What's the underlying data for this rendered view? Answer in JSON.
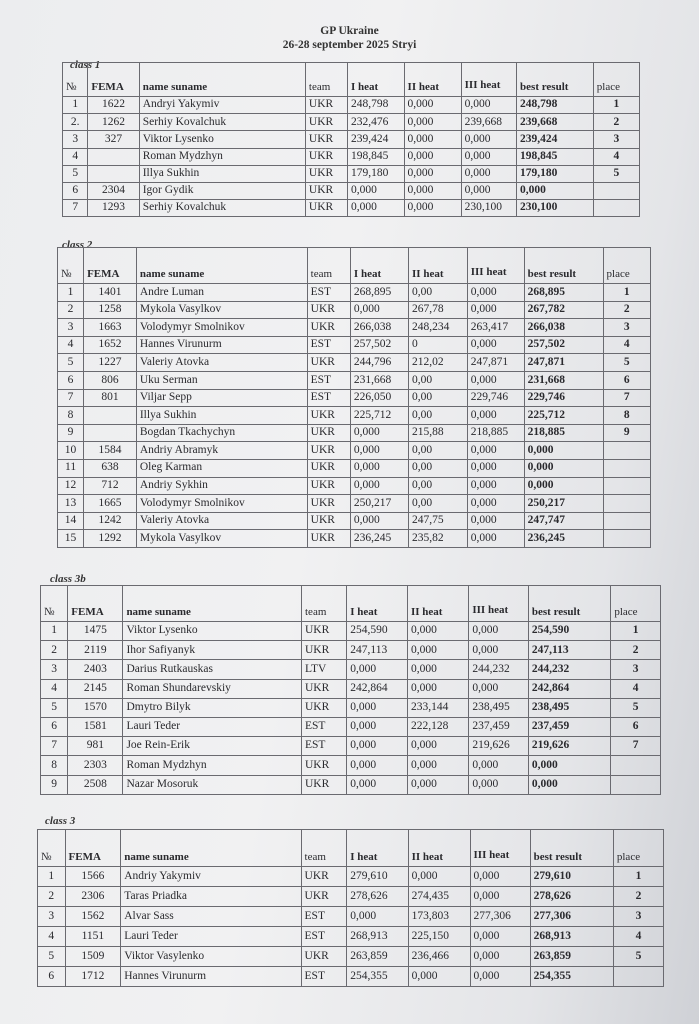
{
  "header": {
    "title": "GP Ukraine",
    "subtitle": "26-28 september 2025  Stryi"
  },
  "columns": [
    "№",
    "FEMA",
    "name suname",
    "team",
    "I heat",
    "II heat",
    "III heat",
    "best result",
    "place"
  ],
  "classes": [
    {
      "label": "class 1",
      "rows": [
        [
          "1",
          "1622",
          "Andryi Yakymiv",
          "UKR",
          "248,798",
          "0,000",
          "0,000",
          "248,798",
          "1"
        ],
        [
          "2.",
          "1262",
          "Serhiy Kovalchuk",
          "UKR",
          "232,476",
          "0,000",
          "239,668",
          "239,668",
          "2"
        ],
        [
          "3",
          "327",
          "Viktor Lysenko",
          "UKR",
          "239,424",
          "0,000",
          "0,000",
          "239,424",
          "3"
        ],
        [
          "4",
          "",
          "Roman Mydzhyn",
          "UKR",
          "198,845",
          "0,000",
          "0,000",
          "198,845",
          "4"
        ],
        [
          "5",
          "",
          "Illya Sukhin",
          "UKR",
          "179,180",
          "0,000",
          "0,000",
          "179,180",
          "5"
        ],
        [
          "6",
          "2304",
          "Igor Gydik",
          "UKR",
          "0,000",
          "0,000",
          "0,000",
          "0,000",
          ""
        ],
        [
          "7",
          "1293",
          "Serhiy Kovalchuk",
          "UKR",
          "0,000",
          "0,000",
          "230,100",
          "230,100",
          ""
        ]
      ]
    },
    {
      "label": "class 2",
      "rows": [
        [
          "1",
          "1401",
          "Andre Luman",
          "EST",
          "268,895",
          "0,00",
          "0,000",
          "268,895",
          "1"
        ],
        [
          "2",
          "1258",
          "Mykola Vasylkov",
          "UKR",
          "0,000",
          "267,78",
          "0,000",
          "267,782",
          "2"
        ],
        [
          "3",
          "1663",
          "Volodymyr Smolnikov",
          "UKR",
          "266,038",
          "248,234",
          "263,417",
          "266,038",
          "3"
        ],
        [
          "4",
          "1652",
          "Hannes Virunurm",
          "EST",
          "257,502",
          "0",
          "0,000",
          "257,502",
          "4"
        ],
        [
          "5",
          "1227",
          "Valeriy Atovka",
          "UKR",
          "244,796",
          "212,02",
          "247,871",
          "247,871",
          "5"
        ],
        [
          "6",
          "806",
          "Uku Serman",
          "EST",
          "231,668",
          "0,00",
          "0,000",
          "231,668",
          "6"
        ],
        [
          "7",
          "801",
          "Viljar Sepp",
          "EST",
          "226,050",
          "0,00",
          "229,746",
          "229,746",
          "7"
        ],
        [
          "8",
          "",
          "Illya Sukhin",
          "UKR",
          "225,712",
          "0,00",
          "0,000",
          "225,712",
          "8"
        ],
        [
          "9",
          "",
          "Bogdan Tkachychyn",
          "UKR",
          "0,000",
          "215,88",
          "218,885",
          "218,885",
          "9"
        ],
        [
          "10",
          "1584",
          "Andriy Abramyk",
          "UKR",
          "0,000",
          "0,00",
          "0,000",
          "0,000",
          ""
        ],
        [
          "11",
          "638",
          "Oleg Karman",
          "UKR",
          "0,000",
          "0,00",
          "0,000",
          "0,000",
          ""
        ],
        [
          "12",
          "712",
          "Andriy Sykhin",
          "UKR",
          "0,000",
          "0,00",
          "0,000",
          "0,000",
          ""
        ],
        [
          "13",
          "1665",
          "Volodymyr Smolnikov",
          "UKR",
          "250,217",
          "0,00",
          "0,000",
          "250,217",
          ""
        ],
        [
          "14",
          "1242",
          "Valeriy Atovka",
          "UKR",
          "0,000",
          "247,75",
          "0,000",
          "247,747",
          ""
        ],
        [
          "15",
          "1292",
          "Mykola Vasylkov",
          "UKR",
          "236,245",
          "235,82",
          "0,000",
          "236,245",
          ""
        ]
      ]
    },
    {
      "label": "class 3b",
      "rows": [
        [
          "1",
          "1475",
          "Viktor Lysenko",
          "UKR",
          "254,590",
          "0,000",
          "0,000",
          "254,590",
          "1"
        ],
        [
          "2",
          "2119",
          "Ihor Safiyanyk",
          "UKR",
          "247,113",
          "0,000",
          "0,000",
          "247,113",
          "2"
        ],
        [
          "3",
          "2403",
          "Darius Rutkauskas",
          "LTV",
          "0,000",
          "0,000",
          "244,232",
          "244,232",
          "3"
        ],
        [
          "4",
          "2145",
          "Roman Shundarevskiy",
          "UKR",
          "242,864",
          "0,000",
          "0,000",
          "242,864",
          "4"
        ],
        [
          "5",
          "1570",
          "Dmytro Bilyk",
          "UKR",
          "0,000",
          "233,144",
          "238,495",
          "238,495",
          "5"
        ],
        [
          "6",
          "1581",
          "Lauri Teder",
          "EST",
          "0,000",
          "222,128",
          "237,459",
          "237,459",
          "6"
        ],
        [
          "7",
          "981",
          "Joe Rein-Erik",
          "EST",
          "0,000",
          "0,000",
          "219,626",
          "219,626",
          "7"
        ],
        [
          "8",
          "2303",
          "Roman Mydzhyn",
          "UKR",
          "0,000",
          "0,000",
          "0,000",
          "0,000",
          ""
        ],
        [
          "9",
          "2508",
          "Nazar Mosoruk",
          "UKR",
          "0,000",
          "0,000",
          "0,000",
          "0,000",
          ""
        ]
      ]
    },
    {
      "label": "class  3",
      "rows": [
        [
          "1",
          "1566",
          "Andriy Yakymiv",
          "UKR",
          "279,610",
          "0,000",
          "0,000",
          "279,610",
          "1"
        ],
        [
          "2",
          "2306",
          "Taras Priadka",
          "UKR",
          "278,626",
          "274,435",
          "0,000",
          "278,626",
          "2"
        ],
        [
          "3",
          "1562",
          "Alvar Sass",
          "EST",
          "0,000",
          "173,803",
          "277,306",
          "277,306",
          "3"
        ],
        [
          "4",
          "1151",
          "Lauri Teder",
          "EST",
          "268,913",
          "225,150",
          "0,000",
          "268,913",
          "4"
        ],
        [
          "5",
          "1509",
          "Viktor Vasylenko",
          "UKR",
          "263,859",
          "236,466",
          "0,000",
          "263,859",
          "5"
        ],
        [
          "6",
          "1712",
          "Hannes Virunurm",
          "EST",
          "254,355",
          "0,000",
          "0,000",
          "254,355",
          ""
        ]
      ]
    }
  ]
}
